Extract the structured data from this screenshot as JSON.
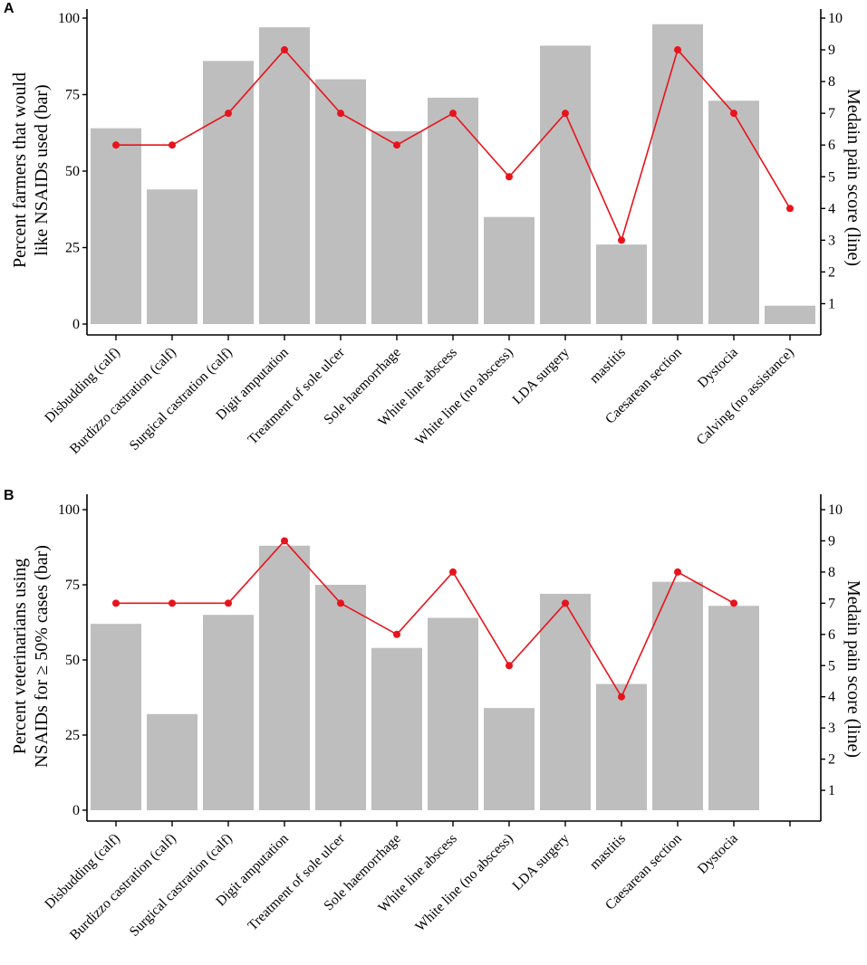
{
  "chart_data": [
    {
      "panel": "A",
      "type": "bar+line",
      "categories": [
        "Disbudding (calf)",
        "Burdizzo castration (calf)",
        "Surgical castration (calf)",
        "Digit amputation",
        "Treatment of sole ulcer",
        "Sole haemorrhage",
        "White line abscess",
        "White line (no abscess)",
        "LDA surgery",
        "mastitis",
        "Caesarean section",
        "Dystocia",
        "Calving (no assistance)"
      ],
      "bar_values": [
        64,
        44,
        86,
        97,
        80,
        63,
        74,
        35,
        91,
        26,
        98,
        73,
        6
      ],
      "line_values": [
        6,
        6,
        7,
        9,
        7,
        6,
        7,
        5,
        7,
        3,
        9,
        7,
        4
      ],
      "ylabel_left": [
        "Percent farmers that would",
        "like NSAIDs used (bar)"
      ],
      "ylabel_right": "Medain pain score (line)",
      "ylim_left": [
        0,
        100
      ],
      "left_ticks": [
        0,
        25,
        50,
        75,
        100
      ],
      "ylim_right": [
        0,
        10
      ],
      "right_ticks": [
        1,
        2,
        3,
        4,
        5,
        6,
        7,
        8,
        9,
        10
      ],
      "bar_color": "#bebebe",
      "line_color": "#e8131b"
    },
    {
      "panel": "B",
      "type": "bar+line",
      "categories": [
        "Disbudding (calf)",
        "Burdizzo castration (calf)",
        "Surgical castration (calf)",
        "Digit amputation",
        "Treatment of sole ulcer",
        "Sole haemorrhage",
        "White line abscess",
        "White line (no abscess)",
        "LDA surgery",
        "mastitis",
        "Caesarean section",
        "Dystocia",
        ""
      ],
      "bar_values": [
        62,
        32,
        65,
        88,
        75,
        54,
        64,
        34,
        72,
        42,
        76,
        68,
        null
      ],
      "line_values": [
        7,
        7,
        7,
        9,
        7,
        6,
        8,
        5,
        7,
        4,
        8,
        7,
        null
      ],
      "ylabel_left": [
        "Percent veterinarians using",
        "NSAIDs for ≥ 50% cases (bar)"
      ],
      "ylabel_right": "Medain pain score (line)",
      "ylim_left": [
        0,
        100
      ],
      "left_ticks": [
        0,
        25,
        50,
        75,
        100
      ],
      "ylim_right": [
        0,
        10
      ],
      "right_ticks": [
        1,
        2,
        3,
        4,
        5,
        6,
        7,
        8,
        9,
        10
      ],
      "bar_color": "#bebebe",
      "line_color": "#e8131b"
    }
  ]
}
